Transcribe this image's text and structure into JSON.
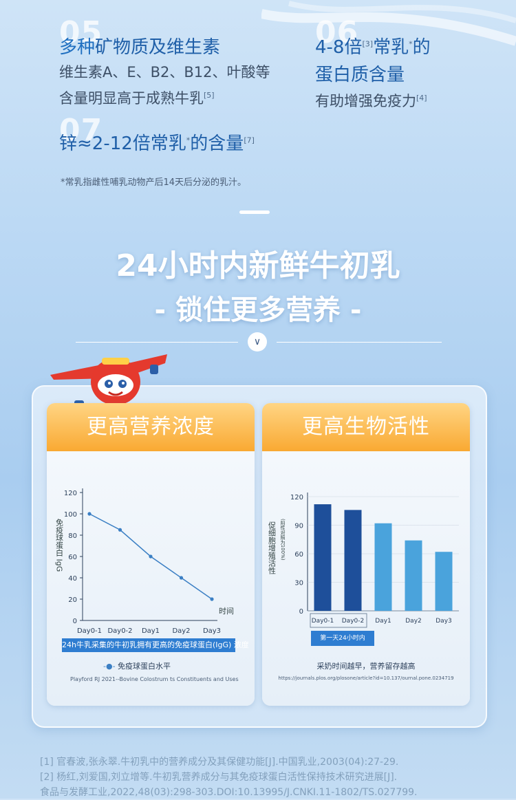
{
  "features": {
    "f05": {
      "num": "05",
      "title_a": "多种",
      "title_b": "矿物质及维生素",
      "line1": "维生素A、E、B2、B12、叶酸等",
      "line2": "含量明显高于成熟牛乳",
      "line2_ref": "[5]"
    },
    "f06": {
      "num": "06",
      "title_a": "4-8倍",
      "title_ref1": "[3]",
      "title_b": "常乳",
      "title_star": "*",
      "title_c": "的",
      "line1": "蛋白质含量",
      "line2": "有助增强免疫力",
      "line2_ref": "[4]"
    },
    "f07": {
      "num": "07",
      "title_a": "锌≈2-12倍常乳",
      "title_star": "*",
      "title_b": "的含量",
      "title_ref": "[7]"
    }
  },
  "footnote": "*常乳指雌性哺乳动物产后14天后分泌的乳汁。",
  "headline": {
    "line1": "24小时内新鲜牛初乳",
    "line2": "- 锁住更多营养 -"
  },
  "chevron": "∨",
  "cards": {
    "left": {
      "title": "更高营养浓度",
      "ylabel": "免疫球蛋白 IgG",
      "xlabel": "时间",
      "highlight": "24h牛乳采集的牛初乳拥有更高的免疫球蛋白(IgG) 浓度",
      "legend": "免疫球蛋白水平",
      "source": "Playford RJ 2021--Bovine Colostrum ts Constituents and Uses"
    },
    "right": {
      "title": "更高生物活性",
      "ylabel": "促细胞增殖活性",
      "ylabel2": "(阳性对照为100%)",
      "group_label": "第一天24小时内",
      "caption": "采奶时间越早，营养留存越高",
      "source": "https://journals.plos.org/plosone/article?id=10.137/ournal.pone.0234719"
    }
  },
  "chart_data": [
    {
      "type": "line",
      "categories": [
        "Day0-1",
        "Day0-2",
        "Day1",
        "Day2",
        "Day3"
      ],
      "series": [
        {
          "name": "免疫球蛋白水平",
          "values": [
            100,
            85,
            60,
            40,
            20
          ]
        }
      ],
      "ylim": [
        0,
        120
      ],
      "yticks": [
        0,
        20,
        40,
        60,
        80,
        100,
        120
      ],
      "xlabel": "时间",
      "ylabel": "免疫球蛋白 IgG",
      "color": "#3b7fc4"
    },
    {
      "type": "bar",
      "categories": [
        "Day0-1",
        "Day0-2",
        "Day1",
        "Day2",
        "Day3"
      ],
      "values": [
        112,
        106,
        92,
        74,
        62
      ],
      "ylim": [
        0,
        120
      ],
      "yticks": [
        0,
        30,
        60,
        90,
        120
      ],
      "ylabel": "促细胞增殖活性",
      "colors": [
        "#1e4f9a",
        "#1e4f9a",
        "#4aa3dc",
        "#4aa3dc",
        "#4aa3dc"
      ]
    }
  ],
  "references": {
    "r1": "[1] 官春波,张永翠.牛初乳中的营养成分及其保健功能[J].中国乳业,2003(04):27-29.",
    "r2": "[2] 杨红,刘爱国,刘立增等.牛初乳营养成分与其免疫球蛋白活性保持技术研究进展[J].",
    "r3": "食品与发酵工业,2022,48(03):298-303.DOI:10.13995/J.CNKI.11-1802/TS.027799."
  }
}
